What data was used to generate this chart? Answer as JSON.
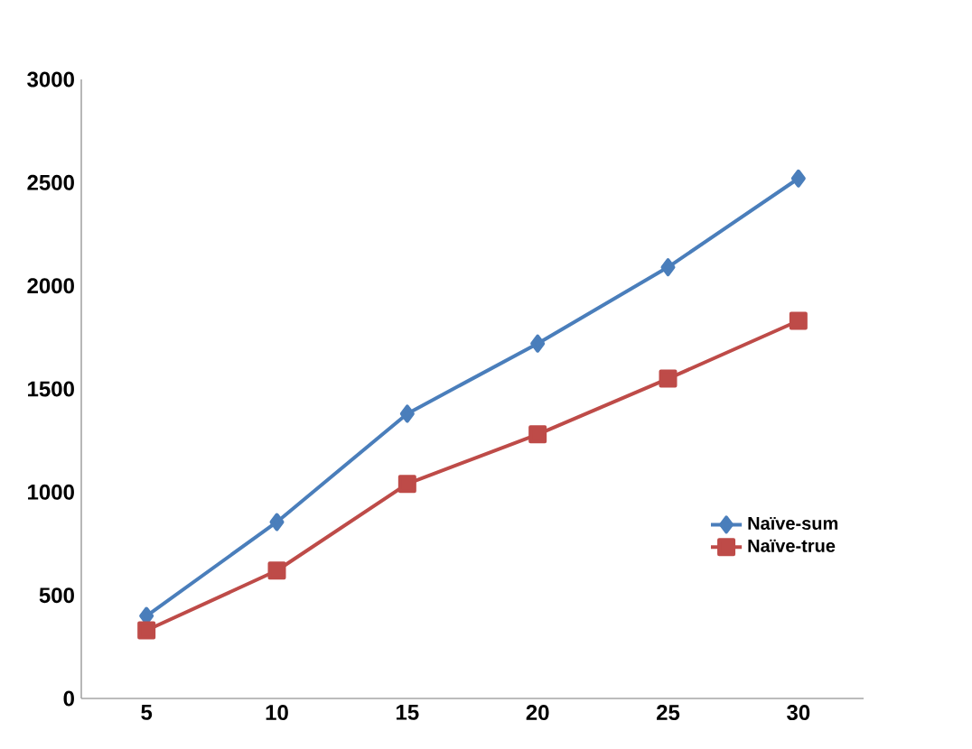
{
  "chart_data": {
    "type": "line",
    "categories": [
      "5",
      "10",
      "15",
      "20",
      "25",
      "30"
    ],
    "series": [
      {
        "name": "Naïve-sum",
        "color": "#4a7ebb",
        "marker": "diamond",
        "values": [
          400,
          855,
          1380,
          1720,
          2090,
          2520
        ]
      },
      {
        "name": "Naïve-true",
        "color": "#be4b48",
        "marker": "square",
        "values": [
          330,
          620,
          1040,
          1280,
          1550,
          1830
        ]
      }
    ],
    "ylim": [
      0,
      3000
    ],
    "yticks": [
      0,
      500,
      1000,
      1500,
      2000,
      2500,
      3000
    ],
    "grid": false,
    "legend": "bottom right",
    "line_style": "solid"
  }
}
